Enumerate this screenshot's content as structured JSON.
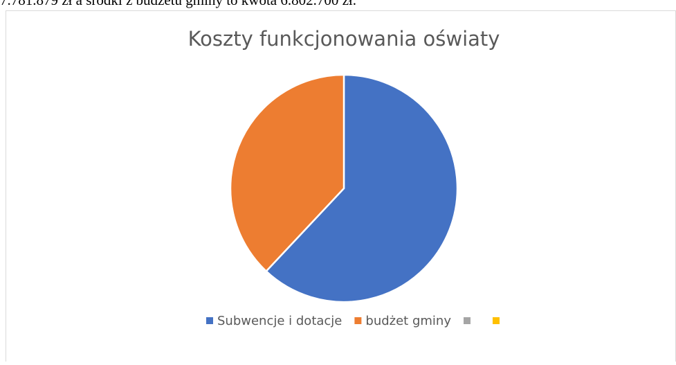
{
  "page_text": "7.781.879 zł a środki z budżetu gminy to kwota 6.802.700 zł.",
  "chart_data": {
    "type": "pie",
    "title": "Koszty funkcjonowania oświaty",
    "categories": [
      "Subwencje i dotacje",
      "budżet gminy",
      null,
      null
    ],
    "values": [
      62,
      38,
      null,
      null
    ],
    "colors": [
      "#4472c4",
      "#ed7d31",
      "#a5a5a5",
      "#ffc000"
    ],
    "legend": "bottom"
  }
}
